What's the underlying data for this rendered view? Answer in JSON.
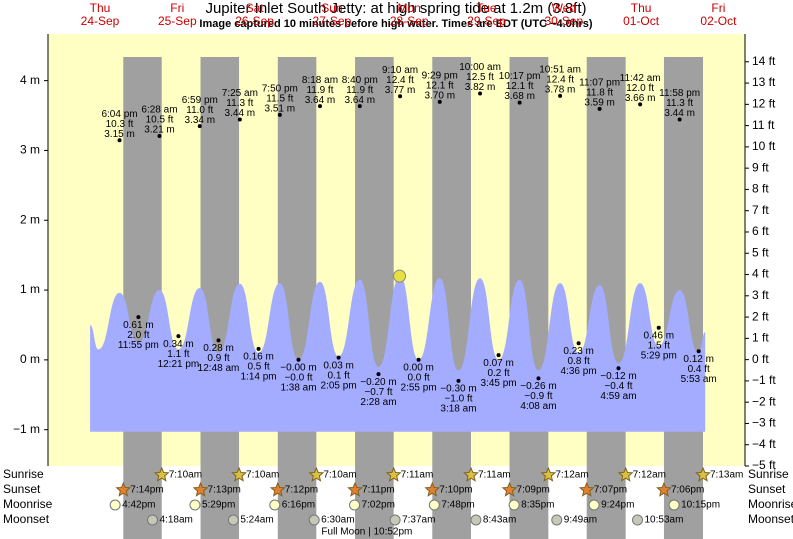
{
  "chart_data": {
    "type": "tide",
    "title": "Jupiter Inlet South Jetty: at high  spring tide at 1.2m (3.8ft)",
    "subtitle": "Image captured 10 minutes before high water. Times are EDT (UTC −4.0hrs)",
    "ylim": [
      -1.52,
      4.41
    ],
    "yticks": [
      {
        "value": -1,
        "label": "−1 m"
      },
      {
        "value": 0,
        "label": "0 m"
      },
      {
        "value": 1,
        "label": "1 m"
      },
      {
        "value": 2,
        "label": "2 m"
      },
      {
        "value": 3,
        "label": "3 m"
      },
      {
        "value": 4,
        "label": "4 m"
      }
    ],
    "y2lim": [
      -5,
      14.46
    ],
    "y2ticks": [
      {
        "value": -5,
        "label": "−5 ft"
      },
      {
        "value": -4,
        "label": "−4 ft"
      },
      {
        "value": -3,
        "label": "−3 ft"
      },
      {
        "value": -2,
        "label": "−2 ft"
      },
      {
        "value": -1,
        "label": "−1 ft"
      },
      {
        "value": 0,
        "label": "0 ft"
      },
      {
        "value": 1,
        "label": "1 ft"
      },
      {
        "value": 2,
        "label": "2 ft"
      },
      {
        "value": 3,
        "label": "3 ft"
      },
      {
        "value": 4,
        "label": "4 ft"
      },
      {
        "value": 5,
        "label": "5 ft"
      },
      {
        "value": 6,
        "label": "6 ft"
      },
      {
        "value": 7,
        "label": "7 ft"
      },
      {
        "value": 8,
        "label": "8 ft"
      },
      {
        "value": 9,
        "label": "9 ft"
      },
      {
        "value": 10,
        "label": "10 ft"
      },
      {
        "value": 11,
        "label": "11 ft"
      },
      {
        "value": 12,
        "label": "12 ft"
      },
      {
        "value": 13,
        "label": "13 ft"
      },
      {
        "value": 14,
        "label": "14 ft"
      }
    ],
    "area_floor": -1.03,
    "colors": {
      "day": "#ffffc4",
      "night": "#a0a0a0",
      "water": "#a4acff",
      "header": "#cc0000"
    },
    "rows": [
      "Sunrise",
      "Sunset",
      "Moonrise",
      "Moonset"
    ],
    "days": [
      {
        "weekday": "Thu",
        "date": "24-Sep",
        "sunrise": null,
        "sunset": "7:14pm",
        "moonrise": "4:42pm",
        "moonset": null,
        "curve_points": [
          {
            "time": "8:55 am",
            "curve_m": 0.5
          },
          {
            "time": "11:30 am",
            "curve_m": 0.15
          }
        ],
        "high_tides": [
          {
            "time": "6:04 pm",
            "m": 3.15,
            "m_label": "3.15 m",
            "ft": 10.3,
            "ft_label": "10.3 ft",
            "curve_m": 0.96
          }
        ],
        "low_tides": [
          {
            "time": "11:55 pm",
            "m": 0.61,
            "m_label": "0.61 m",
            "ft": 2.0,
            "ft_label": "2.0 ft",
            "curve_m": 0.25
          }
        ]
      },
      {
        "weekday": "Fri",
        "date": "25-Sep",
        "sunrise": "7:10am",
        "sunset": "7:13pm",
        "moonrise": "5:29pm",
        "moonset": "4:18am",
        "high_tides": [
          {
            "time": "6:28 am",
            "m": 3.21,
            "m_label": "3.21 m",
            "ft": 10.5,
            "ft_label": "10.5 ft",
            "curve_m": 1.0
          },
          {
            "time": "6:59 pm",
            "m": 3.34,
            "m_label": "3.34 m",
            "ft": 11.0,
            "ft_label": "11.0 ft",
            "curve_m": 1.03
          }
        ],
        "low_tides": [
          {
            "time": "12:21 pm",
            "m": 0.34,
            "m_label": "0.34 m",
            "ft": 1.1,
            "ft_label": "1.1 ft",
            "curve_m": 0.15
          }
        ]
      },
      {
        "weekday": "Sat",
        "date": "26-Sep",
        "sunrise": "7:10am",
        "sunset": "7:12pm",
        "moonrise": "6:16pm",
        "moonset": "5:24am",
        "high_tides": [
          {
            "time": "7:25 am",
            "m": 3.44,
            "m_label": "3.44 m",
            "ft": 11.3,
            "ft_label": "11.3 ft",
            "curve_m": 1.09
          },
          {
            "time": "7:50 pm",
            "m": 3.51,
            "m_label": "3.51 m",
            "ft": 11.5,
            "ft_label": "11.5 ft",
            "curve_m": 1.1
          }
        ],
        "low_tides": [
          {
            "time": "12:48 am",
            "m": 0.28,
            "m_label": "0.28 m",
            "ft": 0.9,
            "ft_label": "0.9 ft",
            "curve_m": 0.1
          },
          {
            "time": "1:14 pm",
            "m": 0.16,
            "m_label": "0.16 m",
            "ft": 0.5,
            "ft_label": "0.5 ft",
            "curve_m": 0.1
          }
        ]
      },
      {
        "weekday": "Sun",
        "date": "27-Sep",
        "sunrise": "7:10am",
        "sunset": "7:11pm",
        "moonrise": "7:02pm",
        "moonset": "6:30am",
        "moon_event": "Full Moon | 10:52pm",
        "high_tides": [
          {
            "time": "8:18 am",
            "m": 3.64,
            "m_label": "3.64 m",
            "ft": 11.9,
            "ft_label": "11.9 ft",
            "curve_m": 1.12
          },
          {
            "time": "8:40 pm",
            "m": 3.64,
            "m_label": "3.64 m",
            "ft": 11.9,
            "ft_label": "11.9 ft",
            "curve_m": 1.15
          }
        ],
        "low_tides": [
          {
            "time": "1:38 am",
            "m": 0,
            "m_label": "−0.00 m",
            "ft": 0,
            "ft_label": "−0.0 ft",
            "curve_m": 0.0
          },
          {
            "time": "2:05 pm",
            "m": 0.03,
            "m_label": "0.03 m",
            "ft": 0.1,
            "ft_label": "0.1 ft",
            "curve_m": 0.05
          }
        ]
      },
      {
        "weekday": "Mon",
        "date": "28-Sep",
        "sunrise": "7:11am",
        "sunset": "7:10pm",
        "moonrise": "7:48pm",
        "moonset": "7:37am",
        "high_tides": [
          {
            "time": "9:10 am",
            "m": 3.77,
            "m_label": "3.77 m",
            "ft": 12.4,
            "ft_label": "12.4 ft",
            "curve_m": 1.2
          },
          {
            "time": "9:29 pm",
            "m": 3.7,
            "m_label": "3.70 m",
            "ft": 12.1,
            "ft_label": "12.1 ft",
            "curve_m": 1.17
          }
        ],
        "low_tides": [
          {
            "time": "2:28 am",
            "m": -0.2,
            "m_label": "−0.20 m",
            "ft": -0.7,
            "ft_label": "−0.7 ft",
            "curve_m": -0.1
          },
          {
            "time": "2:55 pm",
            "m": 0.0,
            "m_label": "0.00 m",
            "ft": 0.0,
            "ft_label": "0.0 ft",
            "curve_m": 0.0
          }
        ]
      },
      {
        "weekday": "Tue",
        "date": "29-Sep",
        "sunrise": "7:11am",
        "sunset": "7:09pm",
        "moonrise": "8:35pm",
        "moonset": "8:43am",
        "high_tides": [
          {
            "time": "10:00 am",
            "m": 3.82,
            "m_label": "3.82 m",
            "ft": 12.5,
            "ft_label": "12.5 ft",
            "curve_m": 1.17
          },
          {
            "time": "10:17 pm",
            "m": 3.68,
            "m_label": "3.68 m",
            "ft": 12.1,
            "ft_label": "12.1 ft",
            "curve_m": 1.15
          }
        ],
        "low_tides": [
          {
            "time": "3:18 am",
            "m": -0.3,
            "m_label": "−0.30 m",
            "ft": -1.0,
            "ft_label": "−1.0 ft",
            "curve_m": -0.15
          },
          {
            "time": "3:45 pm",
            "m": 0.07,
            "m_label": "0.07 m",
            "ft": 0.2,
            "ft_label": "0.2 ft",
            "curve_m": 0.0
          }
        ]
      },
      {
        "weekday": "Wed",
        "date": "30-Sep",
        "sunrise": "7:12am",
        "sunset": "7:07pm",
        "moonrise": "9:24pm",
        "moonset": "9:49am",
        "high_tides": [
          {
            "time": "10:51 am",
            "m": 3.78,
            "m_label": "3.78 m",
            "ft": 12.4,
            "ft_label": "12.4 ft",
            "curve_m": 1.1
          },
          {
            "time": "11:07 pm",
            "m": 3.59,
            "m_label": "3.59 m",
            "ft": 11.8,
            "ft_label": "11.8 ft",
            "curve_m": 1.07
          }
        ],
        "low_tides": [
          {
            "time": "4:08 am",
            "m": -0.26,
            "m_label": "−0.26 m",
            "ft": -0.9,
            "ft_label": "−0.9 ft",
            "curve_m": -0.15
          },
          {
            "time": "4:36 pm",
            "m": 0.23,
            "m_label": "0.23 m",
            "ft": 0.8,
            "ft_label": "0.8 ft",
            "curve_m": 0.1
          }
        ]
      },
      {
        "weekday": "Thu",
        "date": "01-Oct",
        "sunrise": "7:12am",
        "sunset": "7:06pm",
        "moonrise": "10:15pm",
        "moonset": "10:53am",
        "high_tides": [
          {
            "time": "11:42 am",
            "m": 3.66,
            "m_label": "3.66 m",
            "ft": 12.0,
            "ft_label": "12.0 ft",
            "curve_m": 1.1
          },
          {
            "time": "11:58 pm",
            "m": 3.44,
            "m_label": "3.44 m",
            "ft": 11.3,
            "ft_label": "11.3 ft",
            "curve_m": 1.0
          }
        ],
        "low_tides": [
          {
            "time": "4:59 am",
            "m": -0.12,
            "m_label": "−0.12 m",
            "ft": -0.4,
            "ft_label": "−0.4 ft",
            "curve_m": -0.05
          },
          {
            "time": "5:29 pm",
            "m": 0.46,
            "m_label": "0.46 m",
            "ft": 1.5,
            "ft_label": "1.5 ft",
            "curve_m": 0.2
          }
        ]
      },
      {
        "weekday": "Fri",
        "date": "02-Oct",
        "sunrise": "7:13am",
        "sunset": null,
        "moonrise": null,
        "moonset": null,
        "curve_points": [
          {
            "time": "7:55 am",
            "curve_m": 0.4
          }
        ],
        "high_tides": [],
        "low_tides": [
          {
            "time": "5:53 am",
            "m": 0.12,
            "m_label": "0.12 m",
            "ft": 0.4,
            "ft_label": "0.4 ft",
            "curve_m": 0.1
          }
        ]
      }
    ]
  }
}
